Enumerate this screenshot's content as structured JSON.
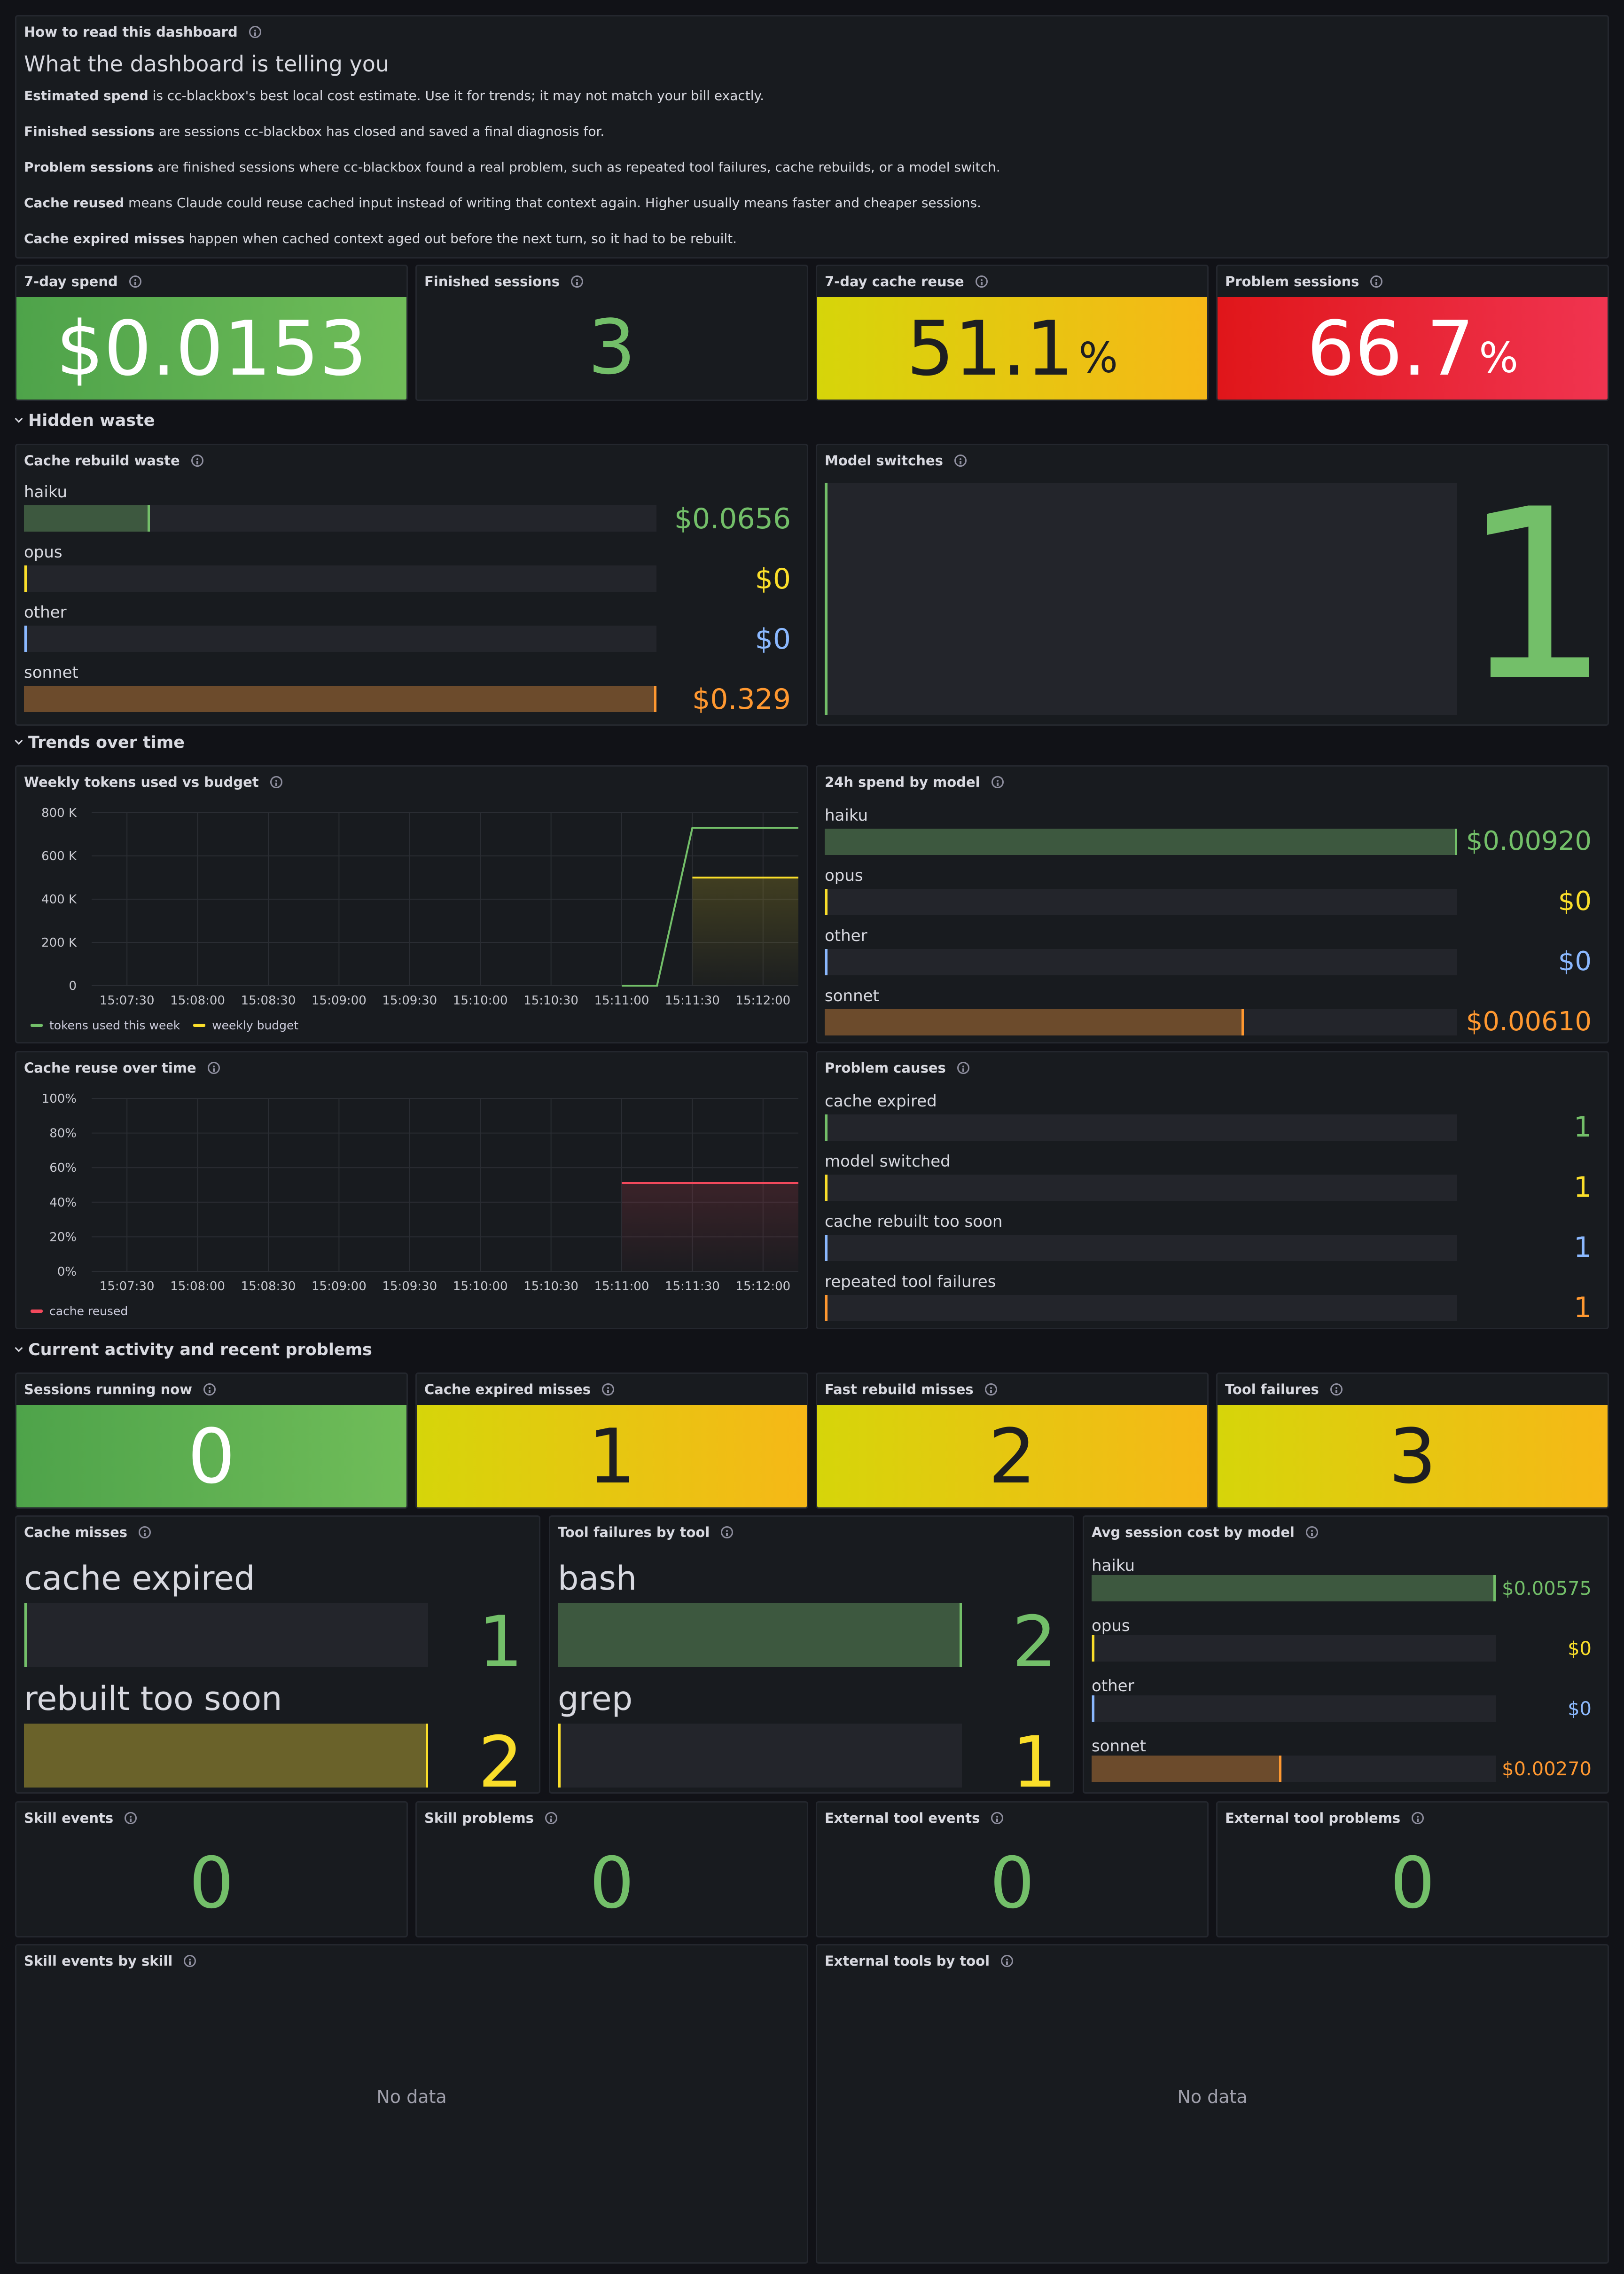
{
  "intro": {
    "title": "How to read this dashboard",
    "heading": "What the dashboard is telling you",
    "lines": [
      {
        "term": "Estimated spend",
        "text": " is cc-blackbox's best local cost estimate. Use it for trends; it may not match your bill exactly."
      },
      {
        "term": "Finished sessions",
        "text": " are sessions cc-blackbox has closed and saved a final diagnosis for."
      },
      {
        "term": "Problem sessions",
        "text": " are finished sessions where cc-blackbox found a real problem, such as repeated tool failures, cache rebuilds, or a model switch."
      },
      {
        "term": "Cache reused",
        "text": " means Claude could reuse cached input instead of writing that context again. Higher usually means faster and cheaper sessions."
      },
      {
        "term": "Cache expired misses",
        "text": " happen when cached context aged out before the next turn, so it had to be rebuilt."
      }
    ]
  },
  "top_stats": [
    {
      "title": "7-day spend",
      "value": "$0.0153",
      "unit": "",
      "style": "green-bg"
    },
    {
      "title": "Finished sessions",
      "value": "3",
      "unit": "",
      "style": "green-text"
    },
    {
      "title": "7-day cache reuse",
      "value": "51.1",
      "unit": "%",
      "style": "yellow-bg"
    },
    {
      "title": "Problem sessions",
      "value": "66.7",
      "unit": "%",
      "style": "red-bg"
    }
  ],
  "sections": {
    "hidden_waste": "Hidden waste",
    "trends": "Trends over time",
    "current": "Current activity and recent problems"
  },
  "cache_rebuild_waste": {
    "title": "Cache rebuild waste",
    "items": [
      {
        "label": "haiku",
        "value": "$0.0656",
        "fraction": 0.199,
        "color": "#73bf69"
      },
      {
        "label": "opus",
        "value": "$0",
        "fraction": 0,
        "color": "#fade2a"
      },
      {
        "label": "other",
        "value": "$0",
        "fraction": 0,
        "color": "#8ab8ff"
      },
      {
        "label": "sonnet",
        "value": "$0.329",
        "fraction": 1.0,
        "color": "#ff9830"
      }
    ]
  },
  "model_switches": {
    "title": "Model switches",
    "value": "1"
  },
  "weekly_tokens": {
    "title": "Weekly tokens used vs budget",
    "legend": [
      "tokens used this week",
      "weekly budget"
    ]
  },
  "spend_24h": {
    "title": "24h spend by model",
    "items": [
      {
        "label": "haiku",
        "value": "$0.00920",
        "fraction": 1.0,
        "color": "#73bf69"
      },
      {
        "label": "opus",
        "value": "$0",
        "fraction": 0,
        "color": "#fade2a"
      },
      {
        "label": "other",
        "value": "$0",
        "fraction": 0,
        "color": "#8ab8ff"
      },
      {
        "label": "sonnet",
        "value": "$0.00610",
        "fraction": 0.663,
        "color": "#ff9830"
      }
    ]
  },
  "cache_reuse_time": {
    "title": "Cache reuse over time",
    "legend": [
      "cache reused"
    ]
  },
  "problem_causes": {
    "title": "Problem causes",
    "items": [
      {
        "label": "cache expired",
        "value": "1",
        "fraction": 0,
        "color": "#73bf69"
      },
      {
        "label": "model switched",
        "value": "1",
        "fraction": 0,
        "color": "#fade2a"
      },
      {
        "label": "cache rebuilt too soon",
        "value": "1",
        "fraction": 0,
        "color": "#8ab8ff"
      },
      {
        "label": "repeated tool failures",
        "value": "1",
        "fraction": 0,
        "color": "#ff9830"
      }
    ]
  },
  "current_stats": [
    {
      "title": "Sessions running now",
      "value": "0",
      "style": "green-bg"
    },
    {
      "title": "Cache expired misses",
      "value": "1",
      "style": "yellow-bg"
    },
    {
      "title": "Fast rebuild misses",
      "value": "2",
      "style": "yellow-bg"
    },
    {
      "title": "Tool failures",
      "value": "3",
      "style": "yellow-bg"
    }
  ],
  "cache_misses": {
    "title": "Cache misses",
    "items": [
      {
        "label": "cache expired",
        "value": "1",
        "fraction": 0,
        "color": "#73bf69"
      },
      {
        "label": "rebuilt too soon",
        "value": "2",
        "fraction": 1.0,
        "color": "#fade2a"
      }
    ]
  },
  "tool_failures": {
    "title": "Tool failures by tool",
    "items": [
      {
        "label": "bash",
        "value": "2",
        "fraction": 1.0,
        "color": "#73bf69"
      },
      {
        "label": "grep",
        "value": "1",
        "fraction": 0,
        "color": "#fade2a"
      }
    ]
  },
  "avg_session_cost": {
    "title": "Avg session cost by model",
    "items": [
      {
        "label": "haiku",
        "value": "$0.00575",
        "fraction": 1.0,
        "color": "#73bf69"
      },
      {
        "label": "opus",
        "value": "$0",
        "fraction": 0,
        "color": "#fade2a"
      },
      {
        "label": "other",
        "value": "$0",
        "fraction": 0,
        "color": "#8ab8ff"
      },
      {
        "label": "sonnet",
        "value": "$0.00270",
        "fraction": 0.47,
        "color": "#ff9830"
      }
    ]
  },
  "zero_stats": [
    {
      "title": "Skill events",
      "value": "0"
    },
    {
      "title": "Skill problems",
      "value": "0"
    },
    {
      "title": "External tool events",
      "value": "0"
    },
    {
      "title": "External tool problems",
      "value": "0"
    }
  ],
  "skill_events_by_skill": {
    "title": "Skill events by skill",
    "empty": "No data"
  },
  "external_tools_by_tool": {
    "title": "External tools by tool",
    "empty": "No data"
  },
  "chart_data": [
    {
      "type": "line",
      "title": "Weekly tokens used vs budget",
      "x": [
        "15:07:30",
        "15:08:00",
        "15:08:30",
        "15:09:00",
        "15:09:30",
        "15:10:00",
        "15:10:30",
        "15:11:00",
        "15:11:30",
        "15:12:00"
      ],
      "yticks": [
        "0",
        "200 K",
        "400 K",
        "600 K",
        "800 K"
      ],
      "ylim": [
        0,
        800000
      ],
      "series": [
        {
          "name": "tokens used this week",
          "color": "#73bf69",
          "points": [
            [
              "15:11:00",
              0
            ],
            [
              "15:11:15",
              0
            ],
            [
              "15:11:30",
              730000
            ],
            [
              "15:12:15",
              730000
            ]
          ]
        },
        {
          "name": "weekly budget",
          "color": "#fade2a",
          "points": [
            [
              "15:11:30",
              500000
            ],
            [
              "15:12:15",
              500000
            ]
          ]
        }
      ]
    },
    {
      "type": "line",
      "title": "Cache reuse over time",
      "x": [
        "15:07:30",
        "15:08:00",
        "15:08:30",
        "15:09:00",
        "15:09:30",
        "15:10:00",
        "15:10:30",
        "15:11:00",
        "15:11:30",
        "15:12:00"
      ],
      "yticks": [
        "0%",
        "20%",
        "40%",
        "60%",
        "80%",
        "100%"
      ],
      "ylim": [
        0,
        100
      ],
      "series": [
        {
          "name": "cache reused",
          "color": "#f2495c",
          "points": [
            [
              "15:11:00",
              51.1
            ],
            [
              "15:12:15",
              51.1
            ]
          ]
        }
      ]
    }
  ]
}
